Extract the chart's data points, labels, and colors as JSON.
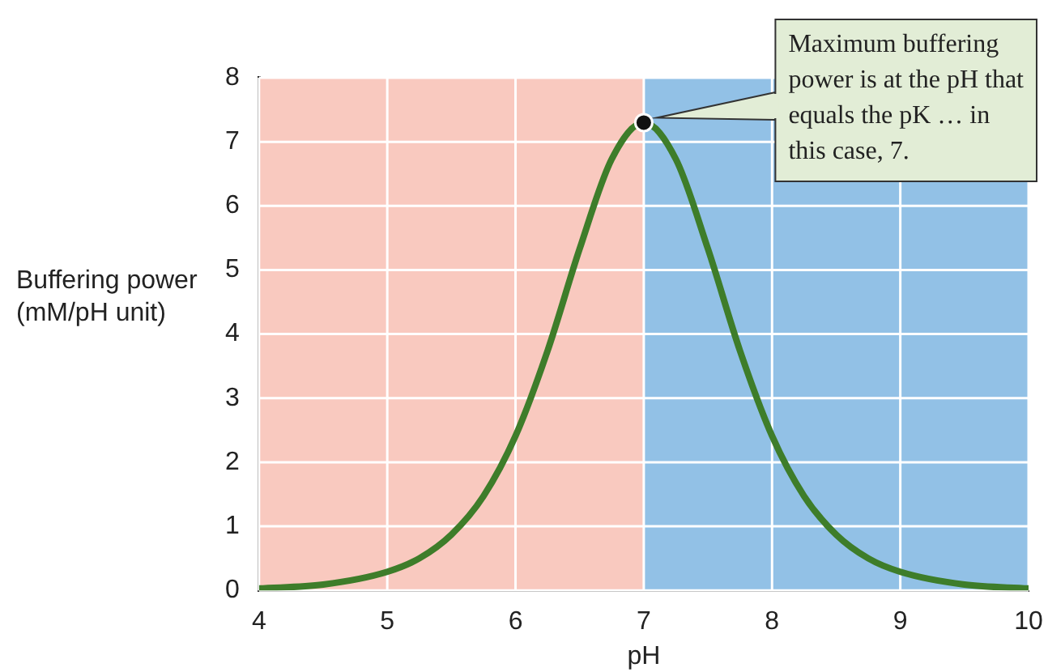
{
  "chart_data": {
    "type": "line",
    "xlabel": "pH",
    "ylabel": "Buffering power (mM/pH unit)",
    "x": [
      4,
      4.5,
      5,
      5.25,
      5.5,
      5.75,
      6,
      6.25,
      6.5,
      6.75,
      7,
      7.25,
      7.5,
      7.75,
      8,
      8.25,
      8.5,
      8.75,
      9,
      9.5,
      10
    ],
    "series": [
      {
        "color": "#3e7d2a",
        "values": [
          0.03,
          0.09,
          0.29,
          0.5,
          0.87,
          1.47,
          2.41,
          3.74,
          5.33,
          6.73,
          7.3,
          6.73,
          5.33,
          3.74,
          2.41,
          1.47,
          0.87,
          0.5,
          0.29,
          0.09,
          0.03
        ]
      }
    ],
    "xlim": [
      4,
      10
    ],
    "xticks": [
      4,
      5,
      6,
      7,
      8,
      9,
      10
    ],
    "ylim": [
      0,
      8
    ],
    "yticks": [
      0,
      1,
      2,
      3,
      4,
      5,
      6,
      7,
      8
    ],
    "grid": true,
    "legend": false,
    "marker": "none",
    "line_style": "solid",
    "bands": [
      {
        "axis": "x",
        "from": 4,
        "to": 7,
        "color": "#f9c9bf"
      },
      {
        "axis": "x",
        "from": 7,
        "to": 10,
        "color": "#92c1e6"
      }
    ],
    "annotations": [
      {
        "text": "Maximum buffering power is at the pH that equals the pK … in this case, 7.",
        "x": 7,
        "y": 7.3
      }
    ]
  }
}
